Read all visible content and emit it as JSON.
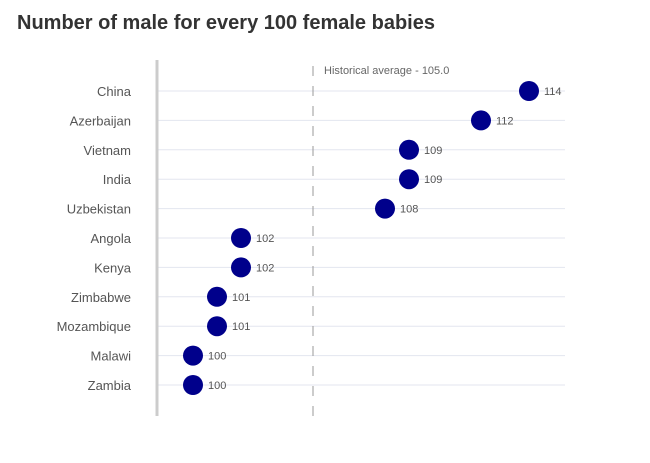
{
  "chart_data": {
    "type": "scatter",
    "title": "Number of male for every 100 female babies",
    "categories": [
      "China",
      "Azerbaijan",
      "Vietnam",
      "India",
      "Uzbekistan",
      "Angola",
      "Kenya",
      "Zimbabwe",
      "Mozambique",
      "Malawi",
      "Zambia"
    ],
    "values": [
      114,
      112,
      109,
      109,
      108,
      102,
      102,
      101,
      101,
      100,
      100
    ],
    "value_labels": [
      "114",
      "112",
      "109",
      "109",
      "108",
      "102",
      "102",
      "101",
      "101",
      "100",
      "100"
    ],
    "reference_line": {
      "value": 105.0,
      "label": "Historical average - 105.0"
    },
    "xlim": [
      98.5,
      115.5
    ],
    "orientation": "horizontal",
    "grid": true,
    "point_color": "#00008b"
  }
}
